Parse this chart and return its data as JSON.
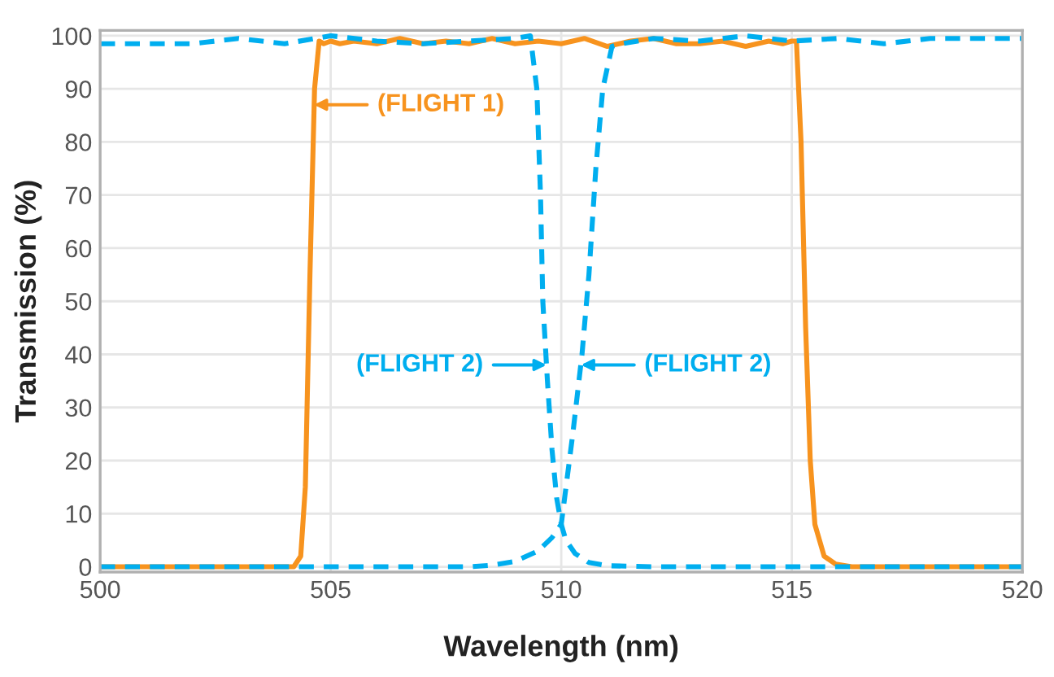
{
  "chart_data": {
    "type": "line",
    "xlabel": "Wavelength (nm)",
    "ylabel": "Transmission (%)",
    "xlim": [
      500,
      520
    ],
    "ylim": [
      -1,
      101
    ],
    "xticks": [
      500,
      505,
      510,
      515,
      520
    ],
    "yticks": [
      0,
      10,
      20,
      30,
      40,
      50,
      60,
      70,
      80,
      90,
      100
    ],
    "grid": true,
    "marker": "none",
    "series": [
      {
        "color": "#f7931e",
        "line_style": "solid",
        "x": [
          500,
          503,
          504.2,
          504.35,
          504.45,
          504.55,
          504.65,
          504.75,
          504.85,
          505.0,
          505.2,
          505.5,
          506,
          506.5,
          507,
          507.5,
          508,
          508.5,
          509,
          509.5,
          510,
          510.5,
          511,
          511.5,
          512,
          512.5,
          513,
          513.5,
          514,
          514.5,
          514.8,
          515.0,
          515.1,
          515.2,
          515.3,
          515.4,
          515.5,
          515.7,
          515.95,
          516.3,
          518,
          520
        ],
        "values": [
          0,
          0,
          0,
          2,
          15,
          55,
          90,
          99,
          98.5,
          99,
          98.5,
          99,
          98.5,
          99.5,
          98.5,
          99,
          98.5,
          99.5,
          98.5,
          99,
          98.5,
          99.5,
          98,
          99,
          99.5,
          98.5,
          98.5,
          99,
          98,
          99,
          98.5,
          99,
          99,
          80,
          45,
          20,
          8,
          2,
          0.5,
          0,
          0,
          0
        ]
      },
      {
        "color": "#00aeef",
        "line_style": "dashed",
        "x": [
          500,
          501,
          502,
          503,
          504,
          505,
          506,
          507,
          508,
          509,
          509.33,
          509.4,
          509.47,
          509.55,
          509.6,
          509.7,
          509.8,
          509.9,
          510,
          510.1,
          510.3,
          510.6,
          511,
          512,
          515,
          520
        ],
        "values": [
          98.5,
          98.5,
          98.5,
          99.5,
          98.5,
          100,
          99,
          98.5,
          99,
          99.5,
          100,
          95,
          90,
          70,
          50,
          35,
          22,
          13,
          8,
          5,
          2.5,
          0.8,
          0.2,
          0,
          0,
          0
        ]
      },
      {
        "color": "#00aeef",
        "line_style": "dashed",
        "x": [
          500,
          505,
          508,
          508.5,
          509,
          509.5,
          509.8,
          510,
          510.25,
          510.45,
          510.6,
          510.75,
          510.9,
          511.1,
          511.3,
          512,
          513,
          514,
          515,
          516,
          517,
          518,
          519,
          520
        ],
        "values": [
          0,
          0,
          0,
          0.3,
          1,
          3,
          5.5,
          8,
          25,
          40,
          55,
          75,
          90,
          98,
          98.5,
          99.5,
          99,
          100,
          99,
          99.5,
          98.5,
          99.5,
          99.5,
          99.5
        ]
      }
    ],
    "annotations": [
      {
        "text": "(FLIGHT 1)",
        "x": 504.64,
        "y": 87
      },
      {
        "text": "(FLIGHT 2)",
        "x": 509.68,
        "y": 38
      },
      {
        "text": "(FLIGHT 2)",
        "x": 510.43,
        "y": 38
      }
    ]
  }
}
